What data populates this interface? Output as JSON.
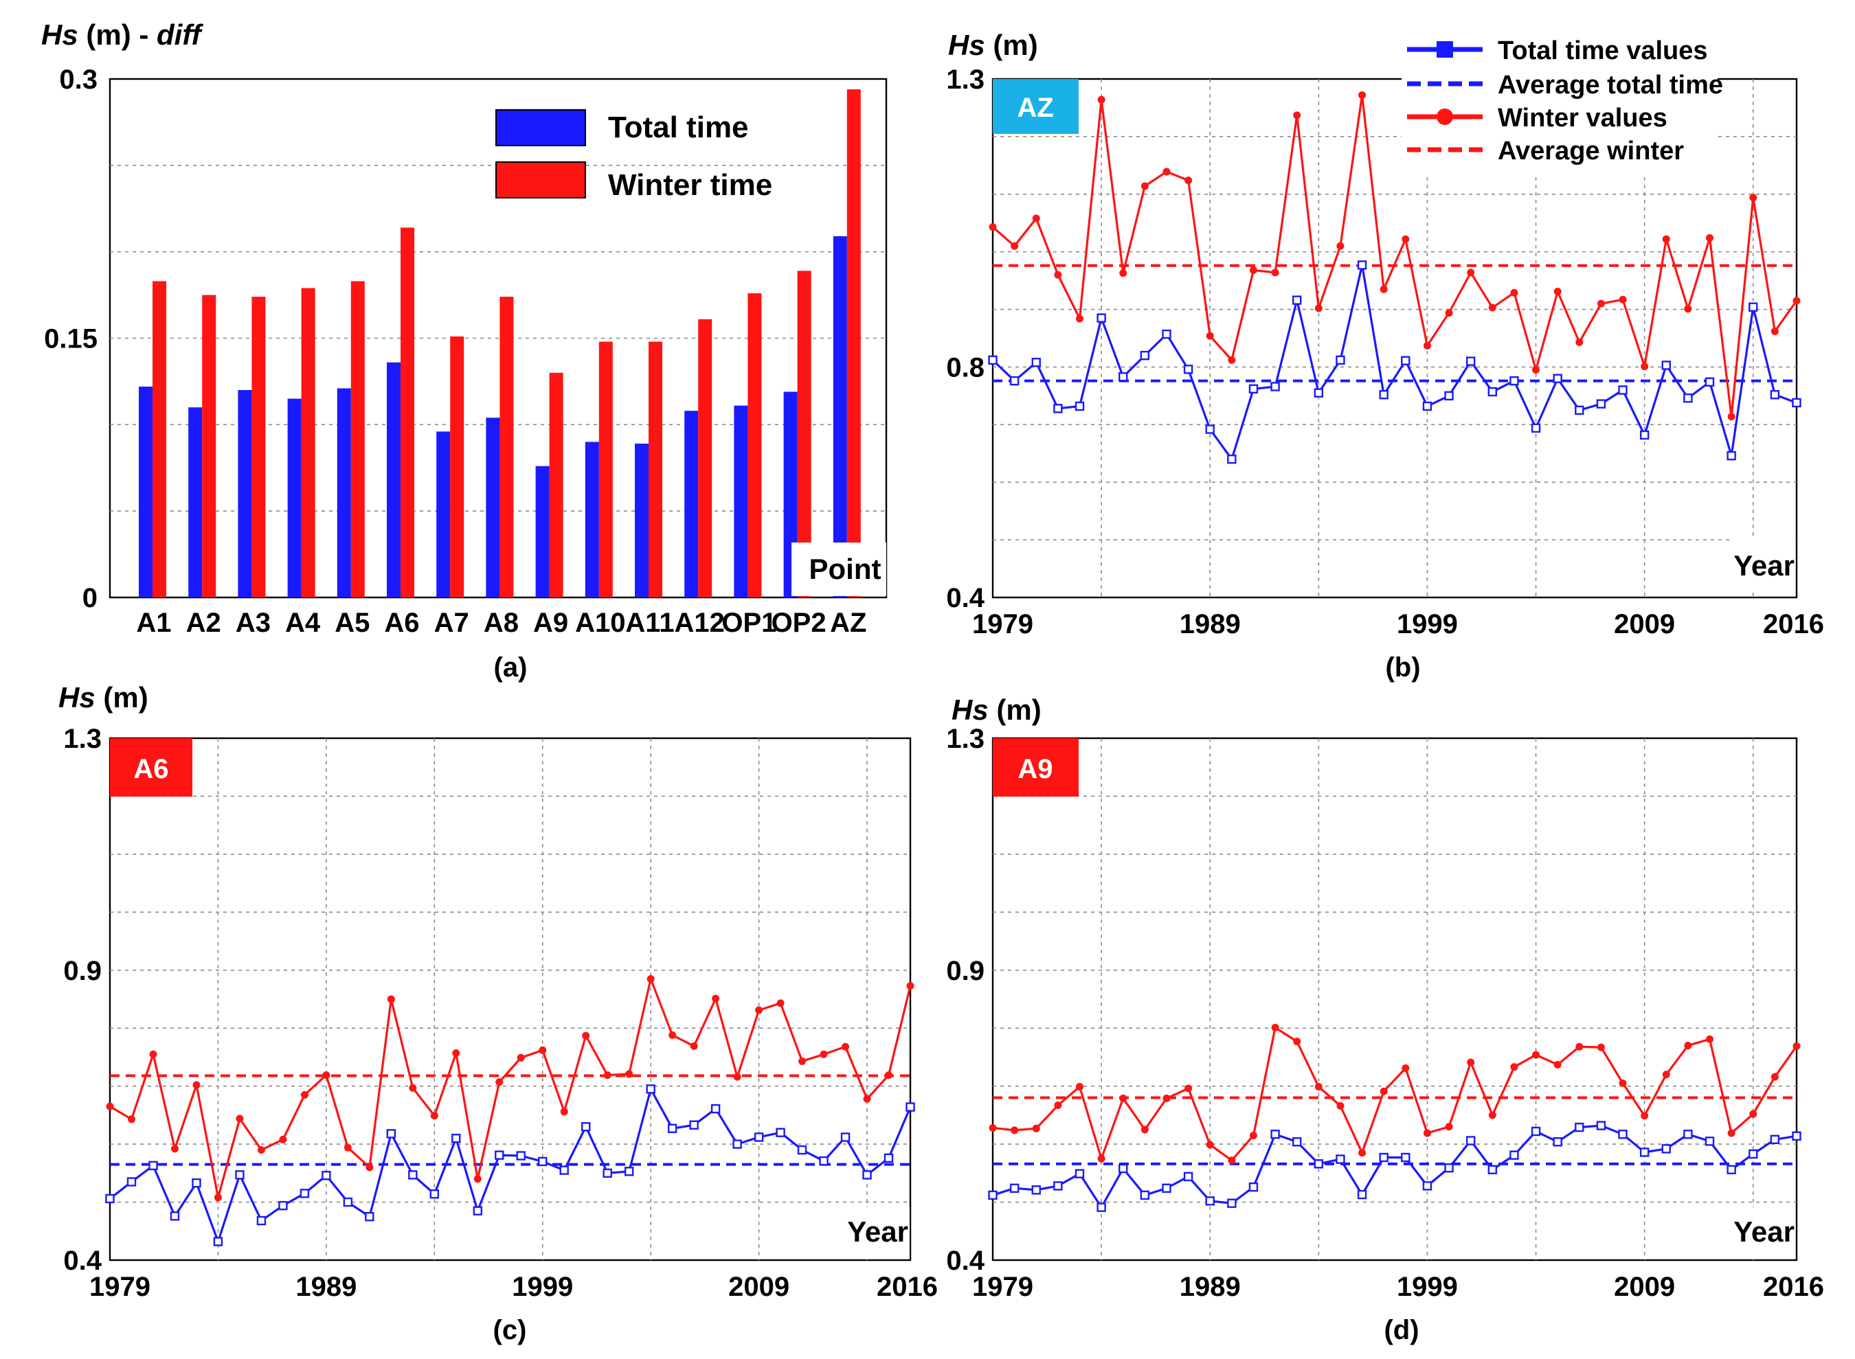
{
  "colors": {
    "total": "#1a1aff",
    "winter": "#ff1414",
    "badge_az": "#1ab0e8",
    "badge_red": "#ff1414"
  },
  "chart_data": [
    {
      "id": "a",
      "type": "bar",
      "caption": "(a)",
      "ylabel_italic": "Hs",
      "ylabel_rest": " (m) - ",
      "ylabel_suffix": "diff",
      "ylim": [
        0,
        0.3
      ],
      "yticks": [
        "0",
        "0.15",
        "0.3"
      ],
      "xlabel": "Point",
      "categories": [
        "A1",
        "A2",
        "A3",
        "A4",
        "A5",
        "A6",
        "A7",
        "A8",
        "A9",
        "A10",
        "A11",
        "A12",
        "OP1",
        "OP2",
        "AZ"
      ],
      "series": [
        {
          "name": "Total time",
          "values": [
            0.122,
            0.11,
            0.12,
            0.115,
            0.121,
            0.136,
            0.096,
            0.104,
            0.076,
            0.09,
            0.089,
            0.108,
            0.111,
            0.119,
            0.209
          ]
        },
        {
          "name": "Winter time",
          "values": [
            0.183,
            0.175,
            0.174,
            0.179,
            0.183,
            0.214,
            0.151,
            0.174,
            0.13,
            0.148,
            0.148,
            0.161,
            0.176,
            0.189,
            0.294
          ]
        }
      ]
    },
    {
      "id": "b",
      "type": "line",
      "caption": "(b)",
      "badge": "AZ",
      "ylabel_italic": "Hs",
      "ylabel_rest": " (m)",
      "xlabel": "Year",
      "ylim": [
        0.4,
        1.3
      ],
      "yticks": [
        "0.4",
        "0.8",
        "1.3"
      ],
      "xrange": [
        1979,
        2016
      ],
      "xticks": [
        "1979",
        "1989",
        "1999",
        "2009",
        "2016"
      ],
      "legend": [
        "Total time values",
        "Average total time",
        "Winter values",
        "Average winter"
      ],
      "series": [
        {
          "name": "Total time values",
          "avg": 0.776,
          "values": [
            0.812,
            0.776,
            0.808,
            0.728,
            0.732,
            0.885,
            0.783,
            0.82,
            0.857,
            0.796,
            0.692,
            0.64,
            0.762,
            0.766,
            0.916,
            0.755,
            0.812,
            0.977,
            0.752,
            0.811,
            0.732,
            0.75,
            0.81,
            0.757,
            0.776,
            0.694,
            0.78,
            0.725,
            0.736,
            0.76,
            0.682,
            0.803,
            0.746,
            0.774,
            0.646,
            0.904,
            0.752,
            0.738
          ]
        },
        {
          "name": "Winter values",
          "avg": 0.976,
          "values": [
            1.043,
            1.01,
            1.058,
            0.96,
            0.884,
            1.264,
            0.963,
            1.114,
            1.139,
            1.124,
            0.854,
            0.812,
            0.968,
            0.964,
            1.237,
            0.902,
            1.01,
            1.272,
            0.935,
            1.022,
            0.837,
            0.894,
            0.964,
            0.903,
            0.929,
            0.795,
            0.931,
            0.843,
            0.91,
            0.917,
            0.801,
            1.022,
            0.901,
            1.024,
            0.714,
            1.094,
            0.862,
            0.915
          ]
        }
      ]
    },
    {
      "id": "c",
      "type": "line",
      "caption": "(c)",
      "badge": "A6",
      "ylabel_italic": "Hs",
      "ylabel_rest": " (m)",
      "xlabel": "Year",
      "ylim": [
        0.4,
        1.3
      ],
      "yticks": [
        "0.4",
        "0.9",
        "1.3"
      ],
      "xrange": [
        1979,
        2016
      ],
      "xticks": [
        "1979",
        "1989",
        "1999",
        "2009",
        "2016"
      ],
      "series": [
        {
          "name": "Total time values",
          "avg": 0.565,
          "values": [
            0.506,
            0.535,
            0.563,
            0.476,
            0.533,
            0.432,
            0.547,
            0.468,
            0.494,
            0.515,
            0.546,
            0.5,
            0.475,
            0.618,
            0.547,
            0.514,
            0.61,
            0.485,
            0.581,
            0.58,
            0.57,
            0.555,
            0.63,
            0.55,
            0.553,
            0.695,
            0.627,
            0.633,
            0.661,
            0.6,
            0.612,
            0.62,
            0.59,
            0.571,
            0.612,
            0.547,
            0.576,
            0.664
          ]
        },
        {
          "name": "Winter values",
          "avg": 0.718,
          "values": [
            0.665,
            0.643,
            0.755,
            0.592,
            0.702,
            0.508,
            0.644,
            0.59,
            0.608,
            0.685,
            0.719,
            0.594,
            0.56,
            0.85,
            0.697,
            0.649,
            0.757,
            0.54,
            0.707,
            0.749,
            0.762,
            0.656,
            0.787,
            0.719,
            0.721,
            0.885,
            0.788,
            0.769,
            0.851,
            0.716,
            0.831,
            0.843,
            0.743,
            0.755,
            0.768,
            0.678,
            0.719,
            0.873
          ]
        }
      ]
    },
    {
      "id": "d",
      "type": "line",
      "caption": "(d)",
      "badge": "A9",
      "ylabel_italic": "Hs",
      "ylabel_rest": " (m)",
      "xlabel": "Year",
      "ylim": [
        0.4,
        1.3
      ],
      "yticks": [
        "0.4",
        "0.9",
        "1.3"
      ],
      "xrange": [
        1979,
        2016
      ],
      "xticks": [
        "1979",
        "1989",
        "1999",
        "2009",
        "2016"
      ],
      "series": [
        {
          "name": "Total time values",
          "avg": 0.566,
          "values": [
            0.512,
            0.524,
            0.521,
            0.528,
            0.549,
            0.491,
            0.558,
            0.512,
            0.524,
            0.544,
            0.502,
            0.498,
            0.526,
            0.617,
            0.604,
            0.566,
            0.574,
            0.513,
            0.577,
            0.577,
            0.528,
            0.559,
            0.606,
            0.556,
            0.581,
            0.622,
            0.604,
            0.629,
            0.632,
            0.617,
            0.586,
            0.592,
            0.617,
            0.605,
            0.556,
            0.583,
            0.608,
            0.614
          ]
        },
        {
          "name": "Winter values",
          "avg": 0.68,
          "values": [
            0.628,
            0.624,
            0.627,
            0.667,
            0.699,
            0.575,
            0.679,
            0.625,
            0.679,
            0.696,
            0.599,
            0.572,
            0.615,
            0.801,
            0.777,
            0.699,
            0.666,
            0.585,
            0.691,
            0.731,
            0.619,
            0.63,
            0.741,
            0.65,
            0.733,
            0.754,
            0.737,
            0.768,
            0.767,
            0.705,
            0.649,
            0.72,
            0.77,
            0.781,
            0.619,
            0.652,
            0.716,
            0.769
          ]
        }
      ]
    }
  ]
}
